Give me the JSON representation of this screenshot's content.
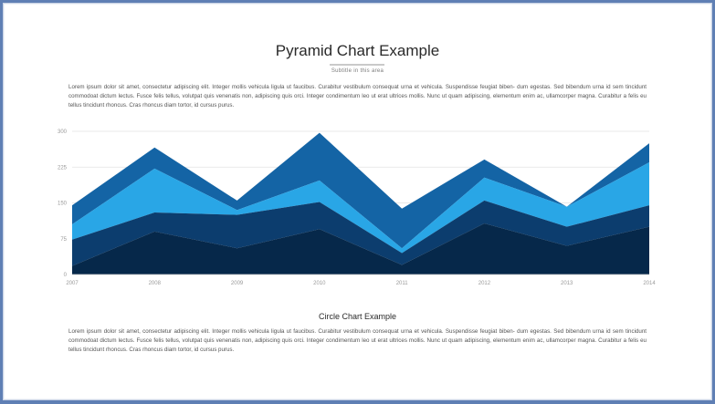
{
  "slide": {
    "title": "Pyramid Chart Example",
    "subtitle": "Subtitle in this area",
    "paragraph_1": "Lorem ipsum dolor sit amet, consectetur adipiscing elit. Integer mollis vehicula ligula ut faucibus. Curabitur vestibulum consequat urna et vehicula. Suspendisse feugiat biben- dum egestas. Sed bibendum urna id sem tincidunt commodoat dictum lectus. Fusce felis tellus, volutpat quis venenatis non, adipiscing quis orci. Integer condimentum leo ut erat ultrices mollis. Nunc ut quam adipiscing, elementum enim ac, ullamcorper magna. Curabitur a felis eu tellus tincidunt rhoncus. Cras rhoncus diam tortor, id cursus purus.",
    "section_title": "Circle Chart Example",
    "paragraph_2": "Lorem ipsum dolor sit amet, consectetur adipiscing elit. Integer mollis vehicula ligula ut faucibus. Curabitur vestibulum consequat urna et vehicula. Suspendisse feugiat biben- dum egestas. Sed bibendum urna id sem tincidunt commodoat dictum lectus. Fusce felis tellus, volutpat quis venenatis non, adipiscing quis orci. Integer condimentum leo ut erat ultrices mollis. Nunc ut quam adipiscing, elementum enim ac, ullamcorper magna. Curabitur a felis eu tellus tincidunt rhoncus. Cras rhoncus diam tortor, id cursus purus."
  },
  "chart_data": {
    "type": "area",
    "stacked": true,
    "categories": [
      "2007",
      "2008",
      "2009",
      "2010",
      "2011",
      "2012",
      "2013",
      "2014"
    ],
    "ylim": [
      0,
      300
    ],
    "yticks": [
      0,
      75,
      150,
      225,
      300
    ],
    "grid": true,
    "series": [
      {
        "values": [
          18,
          90,
          55,
          95,
          20,
          107,
          60,
          100
        ],
        "color": "#06284a"
      },
      {
        "values": [
          55,
          40,
          70,
          57,
          25,
          48,
          40,
          45
        ],
        "color": "#0c3d6e"
      },
      {
        "values": [
          32,
          92,
          10,
          45,
          10,
          48,
          42,
          90
        ],
        "color": "#29a6e6"
      },
      {
        "values": [
          40,
          44,
          20,
          100,
          83,
          38,
          0,
          40
        ],
        "color": "#1464a5"
      }
    ]
  }
}
